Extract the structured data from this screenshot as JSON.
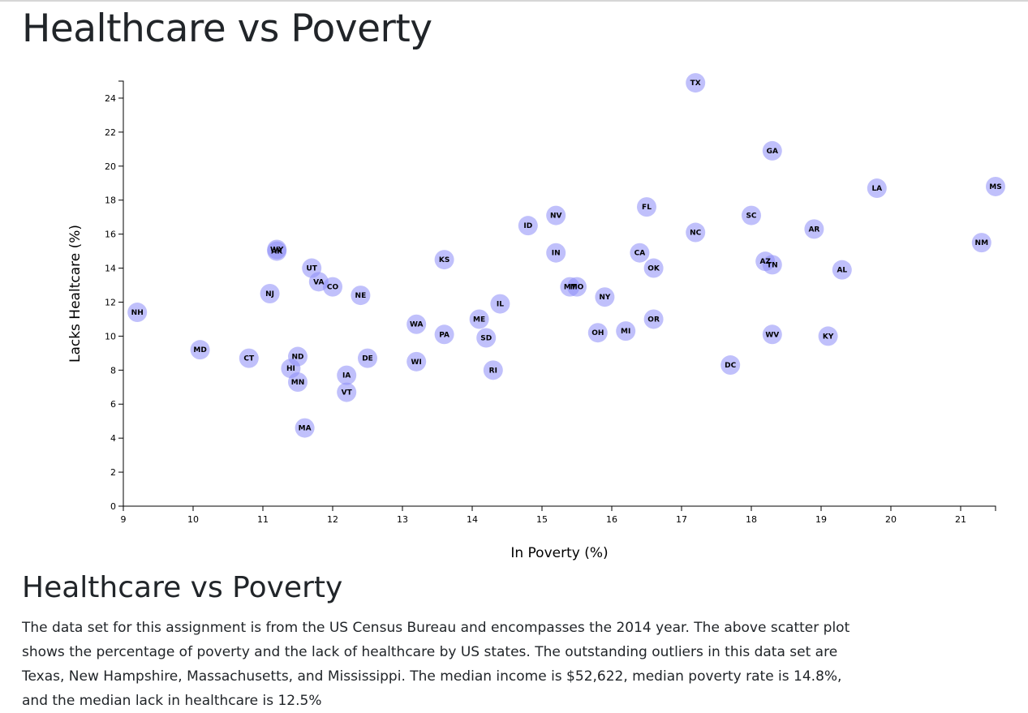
{
  "page": {
    "title": "Healthcare vs Poverty",
    "section_title": "Healthcare vs Poverty",
    "description": "The data set for this assignment is from the US Census Bureau and encompasses the 2014 year. The above scatter plot shows the percentage of poverty and the lack of healthcare by US states. The outstanding outliers in this data set are Texas, New Hampshire, Massachusetts, and Mississippi. The median income is $52,622, median poverty rate is 14.8%, and the median lack in healthcare is 12.5%"
  },
  "colors": {
    "marker_fill": "#8c8cf7",
    "marker_opacity": 0.55,
    "axis": "#000000",
    "text": "#212529"
  },
  "chart_data": {
    "type": "scatter",
    "xlabel": "In Poverty (%)",
    "ylabel": "Lacks Healtcare (%)",
    "xlim": [
      9,
      21.5
    ],
    "ylim": [
      0,
      25
    ],
    "xticks": [
      9,
      10,
      11,
      12,
      13,
      14,
      15,
      16,
      17,
      18,
      19,
      20,
      21
    ],
    "yticks": [
      0,
      2,
      4,
      6,
      8,
      10,
      12,
      14,
      16,
      18,
      20,
      22,
      24
    ],
    "points": [
      {
        "label": "TX",
        "x": 17.2,
        "y": 24.9
      },
      {
        "label": "GA",
        "x": 18.3,
        "y": 20.9
      },
      {
        "label": "LA",
        "x": 19.8,
        "y": 18.7
      },
      {
        "label": "MS",
        "x": 21.5,
        "y": 18.8
      },
      {
        "label": "FL",
        "x": 16.5,
        "y": 17.6
      },
      {
        "label": "NV",
        "x": 15.2,
        "y": 17.1
      },
      {
        "label": "SC",
        "x": 18.0,
        "y": 17.1
      },
      {
        "label": "ID",
        "x": 14.8,
        "y": 16.5
      },
      {
        "label": "AR",
        "x": 18.9,
        "y": 16.3
      },
      {
        "label": "NC",
        "x": 17.2,
        "y": 16.1
      },
      {
        "label": "NM",
        "x": 21.3,
        "y": 15.5
      },
      {
        "label": "WY",
        "x": 11.2,
        "y": 15.1
      },
      {
        "label": "AK",
        "x": 11.2,
        "y": 15.0
      },
      {
        "label": "IN",
        "x": 15.2,
        "y": 14.9
      },
      {
        "label": "CA",
        "x": 16.4,
        "y": 14.9
      },
      {
        "label": "KS",
        "x": 13.6,
        "y": 14.5
      },
      {
        "label": "AZ",
        "x": 18.2,
        "y": 14.4
      },
      {
        "label": "TN",
        "x": 18.3,
        "y": 14.2
      },
      {
        "label": "UT",
        "x": 11.7,
        "y": 14.0
      },
      {
        "label": "OK",
        "x": 16.6,
        "y": 14.0
      },
      {
        "label": "AL",
        "x": 19.3,
        "y": 13.9
      },
      {
        "label": "VA",
        "x": 11.8,
        "y": 13.2
      },
      {
        "label": "MT",
        "x": 15.4,
        "y": 12.9
      },
      {
        "label": "MO",
        "x": 15.5,
        "y": 12.9
      },
      {
        "label": "CO",
        "x": 12.0,
        "y": 12.9
      },
      {
        "label": "NJ",
        "x": 11.1,
        "y": 12.5
      },
      {
        "label": "NE",
        "x": 12.4,
        "y": 12.4
      },
      {
        "label": "NY",
        "x": 15.9,
        "y": 12.3
      },
      {
        "label": "IL",
        "x": 14.4,
        "y": 11.9
      },
      {
        "label": "NH",
        "x": 9.2,
        "y": 11.4
      },
      {
        "label": "ME",
        "x": 14.1,
        "y": 11.0
      },
      {
        "label": "OR",
        "x": 16.6,
        "y": 11.0
      },
      {
        "label": "WA",
        "x": 13.2,
        "y": 10.7
      },
      {
        "label": "MI",
        "x": 16.2,
        "y": 10.3
      },
      {
        "label": "OH",
        "x": 15.8,
        "y": 10.2
      },
      {
        "label": "PA",
        "x": 13.6,
        "y": 10.1
      },
      {
        "label": "WV",
        "x": 18.3,
        "y": 10.1
      },
      {
        "label": "KY",
        "x": 19.1,
        "y": 10.0
      },
      {
        "label": "SD",
        "x": 14.2,
        "y": 9.9
      },
      {
        "label": "MD",
        "x": 10.1,
        "y": 9.2
      },
      {
        "label": "ND",
        "x": 11.5,
        "y": 8.8
      },
      {
        "label": "CT",
        "x": 10.8,
        "y": 8.7
      },
      {
        "label": "DE",
        "x": 12.5,
        "y": 8.7
      },
      {
        "label": "WI",
        "x": 13.2,
        "y": 8.5
      },
      {
        "label": "DC",
        "x": 17.7,
        "y": 8.3
      },
      {
        "label": "HI",
        "x": 11.4,
        "y": 8.1
      },
      {
        "label": "RI",
        "x": 14.3,
        "y": 8.0
      },
      {
        "label": "IA",
        "x": 12.2,
        "y": 7.7
      },
      {
        "label": "MN",
        "x": 11.5,
        "y": 7.3
      },
      {
        "label": "VT",
        "x": 12.2,
        "y": 6.7
      },
      {
        "label": "MA",
        "x": 11.6,
        "y": 4.6
      }
    ]
  }
}
